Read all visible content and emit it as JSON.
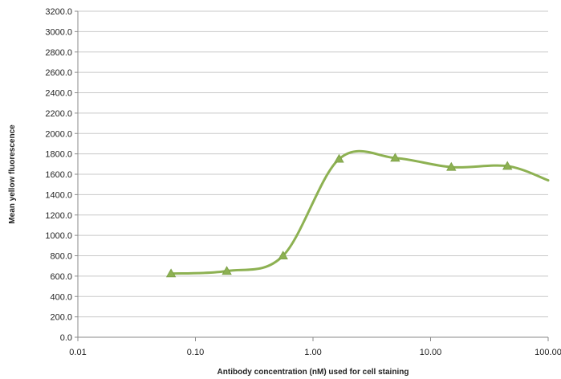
{
  "chart_data": {
    "type": "line",
    "title": "",
    "xlabel": "Antibody concentration (nM) used for cell staining",
    "ylabel": "Mean yellow fluorescence",
    "x_scale": "log",
    "xlim": [
      0.01,
      100
    ],
    "ylim": [
      0,
      3200
    ],
    "x_tick_values": [
      0.01,
      0.1,
      1,
      10,
      100
    ],
    "x_tick_labels": [
      "0.01",
      "0.10",
      "1.00",
      "10.00",
      "100.00"
    ],
    "y_tick_values": [
      0,
      200,
      400,
      600,
      800,
      1000,
      1200,
      1400,
      1600,
      1800,
      2000,
      2200,
      2400,
      2600,
      2800,
      3000,
      3200
    ],
    "y_tick_labels": [
      "0.0",
      "200.0",
      "400.0",
      "600.0",
      "800.0",
      "1000.0",
      "1200.0",
      "1400.0",
      "1600.0",
      "1800.0",
      "2000.0",
      "2200.0",
      "2400.0",
      "2600.0",
      "2800.0",
      "3000.0",
      "3200.0"
    ],
    "grid": "horizontal",
    "smooth": true,
    "marker": "triangle",
    "color": "#8db152",
    "x": [
      0.062,
      0.185,
      0.556,
      1.667,
      5.0,
      15.0,
      45.0,
      100.0
    ],
    "y": [
      625,
      650,
      800,
      1750,
      1760,
      1670,
      1680,
      1540
    ]
  }
}
